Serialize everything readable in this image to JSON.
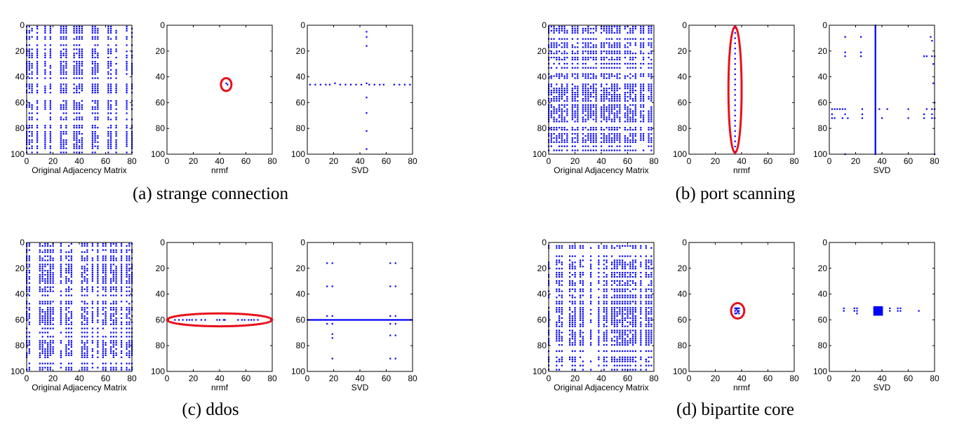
{
  "colors": {
    "points": "#0000ff",
    "highlight": "#e8101a",
    "axes": "#000000"
  },
  "chart_data": [
    {
      "panel": "a",
      "caption": "(a) strange connection",
      "plots": [
        {
          "type": "scatter",
          "xlabel": "Original Adjacency Matrix",
          "xlim": [
            0,
            80
          ],
          "ylim": [
            0,
            100
          ],
          "xticks": [
            "0",
            "20",
            "40",
            "60",
            "80"
          ],
          "yticks": [
            "0",
            "20",
            "40",
            "60",
            "80",
            "100"
          ],
          "pattern": "dense",
          "seed": 11,
          "bands": [
            [
              0,
              8
            ],
            [
              14,
              20
            ],
            [
              24,
              30
            ],
            [
              36,
              42
            ],
            [
              50,
              56
            ],
            [
              62,
              68
            ],
            [
              74,
              80
            ]
          ],
          "highlight": null
        },
        {
          "type": "scatter",
          "xlabel": "nrmf",
          "xlim": [
            0,
            80
          ],
          "ylim": [
            0,
            100
          ],
          "xticks": [
            "0",
            "20",
            "40",
            "60",
            "80"
          ],
          "yticks": [
            "0",
            "20",
            "40",
            "60",
            "80",
            "100"
          ],
          "points": [
            [
              45,
              45
            ],
            [
              46,
              46
            ]
          ],
          "highlight": {
            "shape": "ellipse",
            "cx": 45,
            "cy": 46,
            "rx": 4,
            "ry": 5
          }
        },
        {
          "type": "scatter",
          "xlabel": "SVD",
          "xlim": [
            0,
            80
          ],
          "ylim": [
            0,
            100
          ],
          "xticks": [
            "0",
            "20",
            "40",
            "60",
            "80"
          ],
          "yticks": [
            "0",
            "20",
            "40",
            "60",
            "80",
            "100"
          ],
          "points": [
            [
              45,
              5
            ],
            [
              45,
              9
            ],
            [
              45,
              16
            ],
            [
              2,
              46
            ],
            [
              6,
              46
            ],
            [
              10,
              46
            ],
            [
              14,
              46
            ],
            [
              17,
              46
            ],
            [
              21,
              45
            ],
            [
              25,
              46
            ],
            [
              29,
              46
            ],
            [
              33,
              46
            ],
            [
              37,
              46
            ],
            [
              41,
              46
            ],
            [
              45,
              45
            ],
            [
              47,
              46
            ],
            [
              51,
              46
            ],
            [
              55,
              46
            ],
            [
              58,
              46
            ],
            [
              66,
              46
            ],
            [
              70,
              46
            ],
            [
              74,
              46
            ],
            [
              78,
              46
            ],
            [
              45,
              56
            ],
            [
              45,
              68
            ],
            [
              45,
              82
            ],
            [
              45,
              96
            ]
          ],
          "highlight": null
        }
      ]
    },
    {
      "panel": "b",
      "caption": "(b) port scanning",
      "plots": [
        {
          "type": "scatter",
          "xlabel": "Original Adjacency Matrix",
          "xlim": [
            0,
            80
          ],
          "ylim": [
            0,
            100
          ],
          "xticks": [
            "0",
            "20",
            "40",
            "60",
            "80"
          ],
          "yticks": [
            "0",
            "20",
            "40",
            "60",
            "80",
            "100"
          ],
          "pattern": "dense",
          "seed": 23,
          "bands": [
            [
              0,
              80
            ]
          ],
          "highlight": null
        },
        {
          "type": "scatter",
          "xlabel": "nrmf",
          "xlim": [
            0,
            80
          ],
          "ylim": [
            0,
            100
          ],
          "xticks": [
            "0",
            "20",
            "40",
            "60",
            "80"
          ],
          "yticks": [
            "0",
            "20",
            "40",
            "60",
            "80",
            "100"
          ],
          "points": [
            [
              35,
              2
            ],
            [
              35,
              6
            ],
            [
              35,
              10
            ],
            [
              35,
              14
            ],
            [
              35,
              18
            ],
            [
              35,
              22
            ],
            [
              35,
              26
            ],
            [
              35,
              30
            ],
            [
              35,
              34
            ],
            [
              35,
              38
            ],
            [
              35,
              42
            ],
            [
              35,
              46
            ],
            [
              35,
              50
            ],
            [
              35,
              54
            ],
            [
              35,
              58
            ],
            [
              35,
              62
            ],
            [
              35,
              66
            ],
            [
              35,
              70
            ],
            [
              35,
              74
            ],
            [
              35,
              78
            ],
            [
              35,
              82
            ],
            [
              35,
              86
            ],
            [
              35,
              90
            ],
            [
              35,
              94
            ],
            [
              35,
              98
            ]
          ],
          "highlight": {
            "shape": "ellipse",
            "cx": 35,
            "cy": 50,
            "rx": 5,
            "ry": 49
          }
        },
        {
          "type": "scatter",
          "xlabel": "SVD",
          "xlim": [
            0,
            80
          ],
          "ylim": [
            0,
            100
          ],
          "xticks": [
            "0",
            "20",
            "40",
            "60",
            "80"
          ],
          "yticks": [
            "0",
            "20",
            "40",
            "60",
            "80",
            "100"
          ],
          "points": [
            [
              12,
              9
            ],
            [
              12,
              21
            ],
            [
              12,
              24
            ],
            [
              24,
              9
            ],
            [
              24,
              21
            ],
            [
              24,
              24
            ],
            [
              77,
              9
            ],
            [
              78,
              12
            ],
            [
              78,
              24
            ],
            [
              74,
              24
            ],
            [
              72,
              24
            ],
            [
              80,
              24
            ],
            [
              79,
              30
            ],
            [
              79,
              45
            ],
            [
              80,
              60
            ],
            [
              2,
              65
            ],
            [
              4,
              65
            ],
            [
              6,
              65
            ],
            [
              8,
              65
            ],
            [
              10,
              65
            ],
            [
              12,
              65
            ],
            [
              25,
              65
            ],
            [
              38,
              65
            ],
            [
              44,
              65
            ],
            [
              60,
              65
            ],
            [
              74,
              65
            ],
            [
              78,
              65
            ],
            [
              80,
              65
            ],
            [
              2,
              72
            ],
            [
              4,
              72
            ],
            [
              10,
              72
            ],
            [
              14,
              72
            ],
            [
              25,
              72
            ],
            [
              40,
              72
            ],
            [
              60,
              72
            ],
            [
              72,
              72
            ],
            [
              78,
              72
            ],
            [
              80,
              72
            ],
            [
              2,
              69
            ],
            [
              12,
              69
            ],
            [
              25,
              69
            ],
            [
              72,
              69
            ],
            [
              78,
              69
            ],
            [
              12,
              100
            ],
            [
              80,
              100
            ]
          ],
          "vline": 35,
          "highlight": null
        }
      ]
    },
    {
      "panel": "c",
      "caption": "(c) ddos",
      "plots": [
        {
          "type": "scatter",
          "xlabel": "Original Adjacency Matrix",
          "xlim": [
            0,
            80
          ],
          "ylim": [
            0,
            100
          ],
          "xticks": [
            "0",
            "20",
            "40",
            "60",
            "80"
          ],
          "yticks": [
            "0",
            "20",
            "40",
            "60",
            "80",
            "100"
          ],
          "pattern": "dense",
          "seed": 37,
          "bands": [
            [
              0,
              12
            ],
            [
              14,
              22
            ],
            [
              26,
              34
            ],
            [
              42,
              54
            ],
            [
              58,
              64
            ],
            [
              66,
              74
            ],
            [
              76,
              80
            ]
          ],
          "highlight": null
        },
        {
          "type": "scatter",
          "xlabel": "nrmf",
          "xlim": [
            0,
            80
          ],
          "ylim": [
            0,
            100
          ],
          "xticks": [
            "0",
            "20",
            "40",
            "60",
            "80"
          ],
          "yticks": [
            "0",
            "20",
            "40",
            "60",
            "80",
            "100"
          ],
          "points": [
            [
              6,
              60
            ],
            [
              9,
              60
            ],
            [
              12,
              60
            ],
            [
              15,
              60
            ],
            [
              17,
              60
            ],
            [
              19,
              60
            ],
            [
              22,
              60
            ],
            [
              26,
              60
            ],
            [
              29,
              60
            ],
            [
              38,
              60
            ],
            [
              40,
              60
            ],
            [
              43,
              60
            ],
            [
              44,
              60
            ],
            [
              54,
              60
            ],
            [
              57,
              60
            ],
            [
              59,
              60
            ],
            [
              62,
              60
            ],
            [
              64,
              60
            ],
            [
              66,
              60
            ],
            [
              69,
              60
            ]
          ],
          "highlight": {
            "shape": "ellipse",
            "cx": 40,
            "cy": 60,
            "rx": 40,
            "ry": 5
          }
        },
        {
          "type": "scatter",
          "xlabel": "SVD",
          "xlim": [
            0,
            80
          ],
          "ylim": [
            0,
            100
          ],
          "xticks": [
            "0",
            "20",
            "40",
            "60",
            "80"
          ],
          "yticks": [
            "0",
            "20",
            "40",
            "60",
            "80",
            "100"
          ],
          "points": [
            [
              15,
              16
            ],
            [
              19,
              16
            ],
            [
              63,
              16
            ],
            [
              67,
              16
            ],
            [
              15,
              34
            ],
            [
              19,
              34
            ],
            [
              63,
              34
            ],
            [
              67,
              34
            ],
            [
              15,
              57
            ],
            [
              19,
              57
            ],
            [
              63,
              57
            ],
            [
              67,
              57
            ],
            [
              15,
              63
            ],
            [
              19,
              63
            ],
            [
              63,
              63
            ],
            [
              67,
              63
            ],
            [
              19,
              71
            ],
            [
              19,
              74
            ],
            [
              63,
              72
            ],
            [
              67,
              72
            ],
            [
              19,
              90
            ],
            [
              63,
              90
            ],
            [
              67,
              90
            ]
          ],
          "hline": 60,
          "highlight": null
        }
      ]
    },
    {
      "panel": "d",
      "caption": "(d) bipartite core",
      "plots": [
        {
          "type": "scatter",
          "xlabel": "Original Adjacency Matrix",
          "xlim": [
            0,
            80
          ],
          "ylim": [
            0,
            100
          ],
          "xticks": [
            "0",
            "20",
            "40",
            "60",
            "80"
          ],
          "yticks": [
            "0",
            "20",
            "40",
            "60",
            "80",
            "100"
          ],
          "pattern": "dense",
          "seed": 53,
          "bands": [
            [
              0,
              80
            ]
          ],
          "highlight": null
        },
        {
          "type": "scatter",
          "xlabel": "nrmf",
          "xlim": [
            0,
            80
          ],
          "ylim": [
            0,
            100
          ],
          "xticks": [
            "0",
            "20",
            "40",
            "60",
            "80"
          ],
          "yticks": [
            "0",
            "20",
            "40",
            "60",
            "80",
            "100"
          ],
          "points": [
            [
              35,
              51
            ],
            [
              36,
              51
            ],
            [
              37,
              51
            ],
            [
              38,
              51
            ],
            [
              35,
              53
            ],
            [
              36,
              52
            ],
            [
              37,
              53
            ],
            [
              38,
              53
            ],
            [
              35,
              55
            ],
            [
              36,
              55
            ],
            [
              37,
              54
            ],
            [
              38,
              55
            ]
          ],
          "highlight": {
            "shape": "ellipse",
            "cx": 37,
            "cy": 53,
            "rx": 5,
            "ry": 6
          }
        },
        {
          "type": "scatter",
          "xlabel": "SVD",
          "xlim": [
            0,
            80
          ],
          "ylim": [
            0,
            100
          ],
          "xticks": [
            "0",
            "20",
            "40",
            "60",
            "80"
          ],
          "yticks": [
            "0",
            "20",
            "40",
            "60",
            "80",
            "100"
          ],
          "points": [
            [
              11,
              51
            ],
            [
              11,
              53
            ],
            [
              19,
              51
            ],
            [
              21,
              51
            ],
            [
              19,
              53
            ],
            [
              21,
              53
            ],
            [
              21,
              55
            ],
            [
              46,
              51
            ],
            [
              46,
              53
            ],
            [
              52,
              51
            ],
            [
              54,
              51
            ],
            [
              52,
              53
            ],
            [
              54,
              53
            ],
            [
              68,
              53
            ]
          ],
          "block": [
            34,
            50,
            40,
            56
          ],
          "highlight": null
        }
      ]
    }
  ]
}
